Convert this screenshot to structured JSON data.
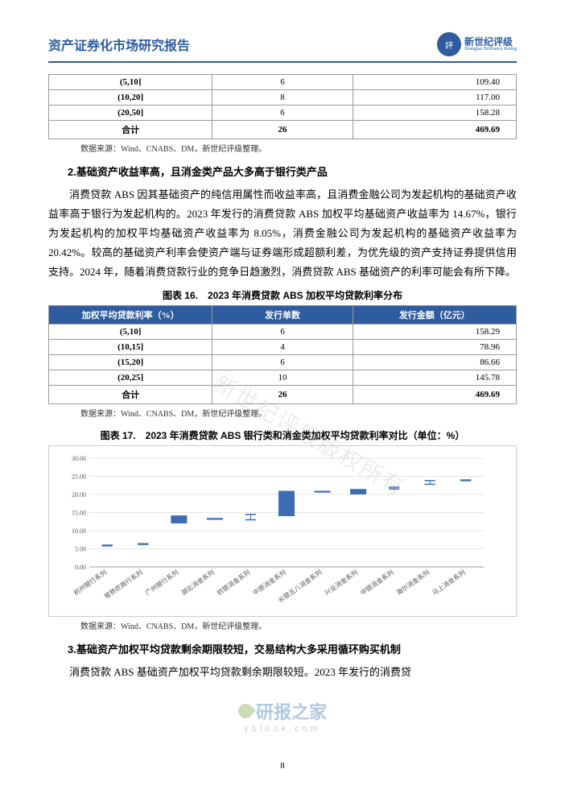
{
  "header": {
    "title": "资产证券化市场研究报告",
    "logo_cn": "新世纪评级",
    "logo_en": "Shanghai Brilliance Rating"
  },
  "table1": {
    "rows": [
      {
        "range": "(5,10]",
        "count": "6",
        "amount": "109.40"
      },
      {
        "range": "(10,20]",
        "count": "8",
        "amount": "117.00"
      },
      {
        "range": "(20,50]",
        "count": "6",
        "amount": "158.28"
      }
    ],
    "total": {
      "label": "合计",
      "count": "26",
      "amount": "469.69"
    }
  },
  "source_note": "数据来源：Wind、CNABS、DM，新世纪评级整理。",
  "section2": {
    "title": "2.基础资产收益率高，且消金类产品大多高于银行类产品",
    "para": "消费贷款 ABS 因其基础资产的纯信用属性而收益率高，且消费金融公司为发起机构的基础资产收益率高于银行为发起机构的。2023 年发行的消费贷款 ABS 加权平均基础资产收益率为 14.67%，银行为发起机构的加权平均基础资产收益率为 8.05%，消费金融公司为发起机构的基础资产收益率为 20.42%。较高的基础资产利率会使资产端与证券端形成超额利差，为优先级的资产支持证券提供信用支持。2024 年，随着消费贷款行业的竞争日趋激烈，消费贷款 ABS 基础资产的利率可能会有所下降。"
  },
  "figure16": {
    "title": "图表 16.　2023 年消费贷款 ABS 加权平均贷款利率分布",
    "headers": [
      "加权平均贷款利率（%）",
      "发行单数",
      "发行金额（亿元）"
    ],
    "rows": [
      {
        "range": "(5,10]",
        "count": "6",
        "amount": "158.29"
      },
      {
        "range": "(10,15]",
        "count": "4",
        "amount": "78.96"
      },
      {
        "range": "(15,20]",
        "count": "6",
        "amount": "86.66"
      },
      {
        "range": "(20,25]",
        "count": "10",
        "amount": "145.78"
      }
    ],
    "total": {
      "label": "合计",
      "count": "26",
      "amount": "469.69"
    }
  },
  "figure17": {
    "title": "图表 17.　2023 年消费贷款 ABS 银行类和消金类加权平均贷款利率对比（单位：%）",
    "y_ticks": [
      "0.00",
      "5.00",
      "10.00",
      "15.00",
      "20.00",
      "25.00",
      "30.00"
    ],
    "ylim": [
      0,
      30
    ],
    "grid_color": "#e5e5e5",
    "background_color": "#ffffff",
    "label_fontsize": 8,
    "categories": [
      "杭州银行系列",
      "常熟农商行系列",
      "广州银行系列",
      "湖北消金系列",
      "杭银消金系列",
      "中原消金系列",
      "长银五八消金系列",
      "兴业消金系列",
      "中银消金系列",
      "海尔消金系列",
      "马上消金系列"
    ],
    "series": {
      "low": [
        5.8,
        6.2,
        0,
        0,
        13.0,
        0,
        0,
        0,
        21.5,
        22.8,
        23.8
      ],
      "high": [
        6.0,
        6.4,
        0,
        0,
        14.5,
        0,
        0,
        0,
        22.0,
        23.8,
        24.0
      ],
      "open": [
        0,
        0,
        12.0,
        13.0,
        0,
        14.0,
        20.5,
        20.0,
        0,
        0,
        0
      ],
      "close": [
        0,
        0,
        14.2,
        13.5,
        0,
        21.0,
        21.0,
        21.5,
        0,
        0,
        0
      ],
      "is_range": [
        false,
        false,
        true,
        true,
        false,
        true,
        true,
        true,
        false,
        false,
        false
      ]
    },
    "bar_fill_color": "#3e6db5",
    "bar_width": 0.45
  },
  "section3": {
    "title": "3.基础资产加权平均贷款剩余期限较短，交易结构大多采用循环购买机制",
    "para": "消费贷款 ABS 基础资产加权平均贷款剩余期限较短。2023 年发行的消费贷"
  },
  "page_number": "8",
  "watermark_text": "新世纪评级版权所有",
  "wm2_top": "研报之家",
  "wm2_bottom": "yblook.com"
}
